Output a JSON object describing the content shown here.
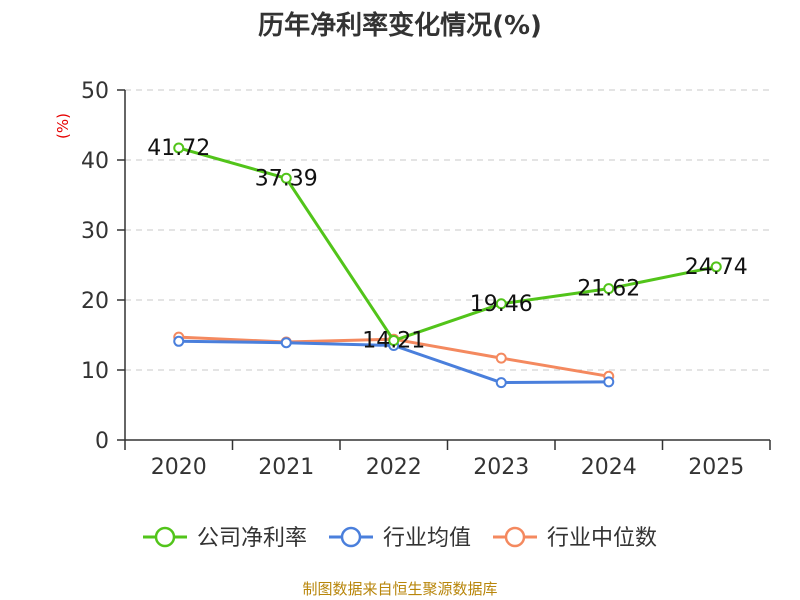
{
  "chart_data": {
    "type": "line",
    "title": "历年净利率变化情况(%)",
    "y_unit": "(%)",
    "ylim": [
      0,
      50
    ],
    "y_ticks": [
      0,
      10,
      20,
      30,
      40,
      50
    ],
    "grid": true,
    "legend_position": "bottom",
    "categories": [
      "2020",
      "2021",
      "2022",
      "2023",
      "2024",
      "2025"
    ],
    "series": [
      {
        "name": "公司净利率",
        "color": "#52c41a",
        "values": [
          41.72,
          37.39,
          14.21,
          19.46,
          21.62,
          24.74
        ],
        "labels": [
          "41.72",
          "37.39",
          "14.21",
          "19.46",
          "21.62",
          "24.74"
        ]
      },
      {
        "name": "行业均值",
        "color": "#4a7fdc",
        "values": [
          14.1,
          13.9,
          13.5,
          8.2,
          8.3,
          null
        ]
      },
      {
        "name": "行业中位数",
        "color": "#f4895f",
        "values": [
          14.7,
          14.0,
          14.4,
          11.7,
          9.1,
          null
        ]
      }
    ]
  },
  "source": "制图数据来自恒生聚源数据库"
}
